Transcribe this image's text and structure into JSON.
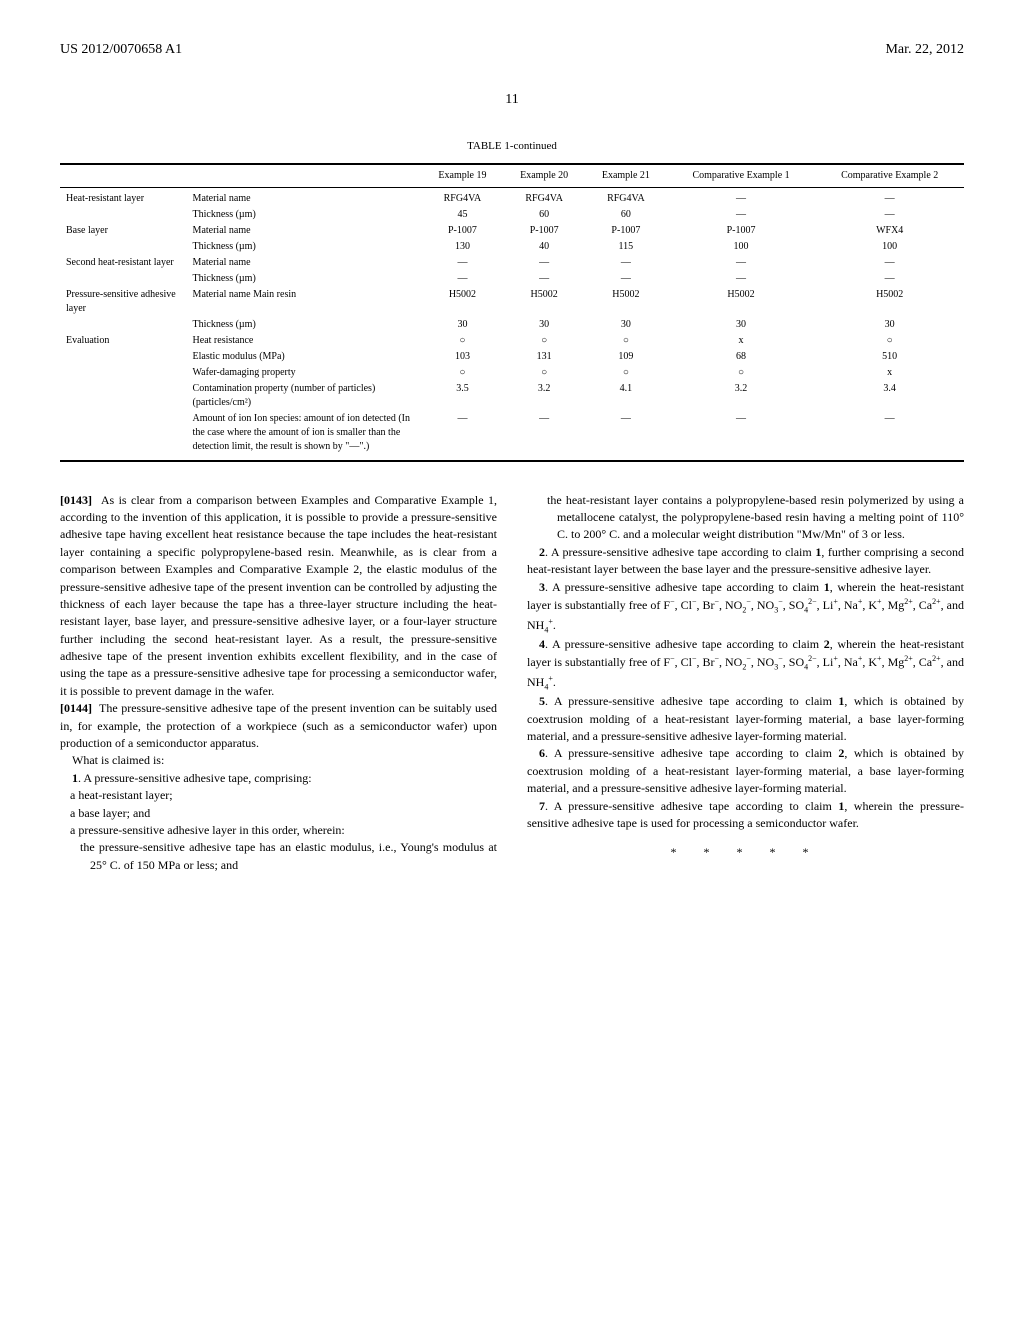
{
  "header": {
    "left": "US 2012/0070658 A1",
    "right": "Mar. 22, 2012"
  },
  "page_number": "11",
  "table": {
    "title": "TABLE 1-continued",
    "columns": [
      "",
      "",
      "Example 19",
      "Example 20",
      "Example 21",
      "Comparative Example 1",
      "Comparative Example 2"
    ],
    "rows": [
      [
        "Heat-resistant layer",
        "Material name",
        "RFG4VA",
        "RFG4VA",
        "RFG4VA",
        "—",
        "—"
      ],
      [
        "",
        "Thickness (µm)",
        "45",
        "60",
        "60",
        "—",
        "—"
      ],
      [
        "Base layer",
        "Material name",
        "P-1007",
        "P-1007",
        "P-1007",
        "P-1007",
        "WFX4"
      ],
      [
        "",
        "Thickness (µm)",
        "130",
        "40",
        "115",
        "100",
        "100"
      ],
      [
        "Second heat-resistant layer",
        "Material name",
        "—",
        "—",
        "—",
        "—",
        "—"
      ],
      [
        "",
        "Thickness (µm)",
        "—",
        "—",
        "—",
        "—",
        "—"
      ],
      [
        "Pressure-sensitive adhesive layer",
        "Material name Main resin",
        "H5002",
        "H5002",
        "H5002",
        "H5002",
        "H5002"
      ],
      [
        "",
        "Thickness (µm)",
        "30",
        "30",
        "30",
        "30",
        "30"
      ],
      [
        "Evaluation",
        "Heat resistance",
        "○",
        "○",
        "○",
        "x",
        "○"
      ],
      [
        "",
        "Elastic modulus (MPa)",
        "103",
        "131",
        "109",
        "68",
        "510"
      ],
      [
        "",
        "Wafer-damaging property",
        "○",
        "○",
        "○",
        "○",
        "x"
      ],
      [
        "",
        "Contamination property (number of particles) (particles/cm²)",
        "3.5",
        "3.2",
        "4.1",
        "3.2",
        "3.4"
      ],
      [
        "",
        "Amount of ion Ion species: amount of ion detected (In the case where the amount of ion is smaller than the detection limit, the result is shown by \"—\".)",
        "—",
        "—",
        "—",
        "—",
        "—"
      ]
    ]
  },
  "left_column": {
    "para143_num": "[0143]",
    "para143": "As is clear from a comparison between Examples and Comparative Example 1, according to the invention of this application, it is possible to provide a pressure-sensitive adhesive tape having excellent heat resistance because the tape includes the heat-resistant layer containing a specific polypropylene-based resin. Meanwhile, as is clear from a comparison between Examples and Comparative Example 2, the elastic modulus of the pressure-sensitive adhesive tape of the present invention can be controlled by adjusting the thickness of each layer because the tape has a three-layer structure including the heat-resistant layer, base layer, and pressure-sensitive adhesive layer, or a four-layer structure further including the second heat-resistant layer. As a result, the pressure-sensitive adhesive tape of the present invention exhibits excellent flexibility, and in the case of using the tape as a pressure-sensitive adhesive tape for processing a semiconductor wafer, it is possible to prevent damage in the wafer.",
    "para144_num": "[0144]",
    "para144": "The pressure-sensitive adhesive tape of the present invention can be suitably used in, for example, the protection of a workpiece (such as a semiconductor wafer) upon production of a semiconductor apparatus.",
    "claims_heading": "What is claimed is:",
    "claim1_lead": "1. A pressure-sensitive adhesive tape, comprising:",
    "claim1_a": "a heat-resistant layer;",
    "claim1_b": "a base layer; and",
    "claim1_c": "a pressure-sensitive adhesive layer in this order, wherein:",
    "claim1_d": "the pressure-sensitive adhesive tape has an elastic modulus, i.e., Young's modulus at 25° C. of 150 MPa or less; and"
  },
  "right_column": {
    "claim1_cont": "the heat-resistant layer contains a polypropylene-based resin polymerized by using a metallocene catalyst, the polypropylene-based resin having a melting point of 110° C. to 200° C. and a molecular weight distribution \"Mw/Mn\" of 3 or less.",
    "claim2": "2. A pressure-sensitive adhesive tape according to claim 1, further comprising a second heat-resistant layer between the base layer and the pressure-sensitive adhesive layer.",
    "claim3": "3. A pressure-sensitive adhesive tape according to claim 1, wherein the heat-resistant layer is substantially free of F⁻, Cl⁻, Br⁻, NO₂⁻, NO₃⁻, SO₄²⁻, Li⁺, Na⁺, K⁺, Mg²⁺, Ca²⁺, and NH₄⁺.",
    "claim4": "4. A pressure-sensitive adhesive tape according to claim 2, wherein the heat-resistant layer is substantially free of F⁻, Cl⁻, Br⁻, NO₂⁻, NO₃⁻, SO₄²⁻, Li⁺, Na⁺, K⁺, Mg²⁺, Ca²⁺, and NH₄⁺.",
    "claim5": "5. A pressure-sensitive adhesive tape according to claim 1, which is obtained by coextrusion molding of a heat-resistant layer-forming material, a base layer-forming material, and a pressure-sensitive adhesive layer-forming material.",
    "claim6": "6. A pressure-sensitive adhesive tape according to claim 2, which is obtained by coextrusion molding of a heat-resistant layer-forming material, a base layer-forming material, and a pressure-sensitive adhesive layer-forming material.",
    "claim7": "7. A pressure-sensitive adhesive tape according to claim 1, wherein the pressure-sensitive adhesive tape is used for processing a semiconductor wafer.",
    "stars": "* * * * *"
  }
}
